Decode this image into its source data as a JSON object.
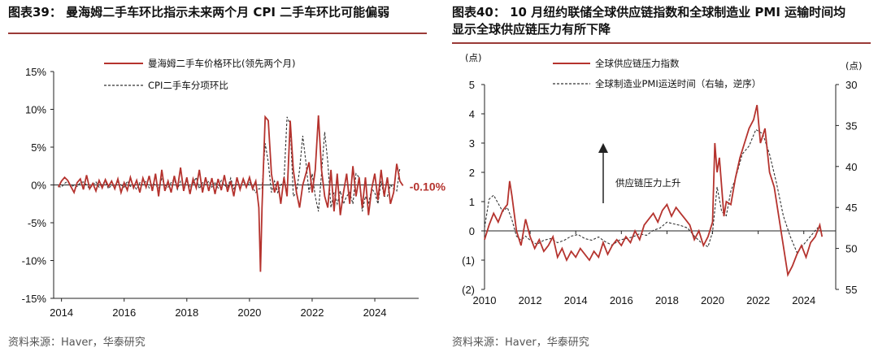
{
  "left": {
    "title": "图表39：  曼海姆二手车环比指示未来两个月 CPI 二手车环比可能偏弱",
    "source": "资料来源：Haver，华泰研究"
  },
  "right": {
    "title_line1": "图表40：  10 月纽约联储全球供应链指数和全球制造业 PMI 运输时间均",
    "title_line2": "显示全球供应链压力有所下降",
    "source": "资料来源：Haver，华泰研究"
  },
  "colors": {
    "red": "#b5332e",
    "black": "#333333",
    "rule": "#9a3a37"
  },
  "chart_data": [
    {
      "type": "line",
      "title": "曼海姆二手车环比指示未来两个月 CPI 二手车环比可能偏弱",
      "x_range": [
        2013.75,
        2025.4
      ],
      "ylim": [
        -15,
        15
      ],
      "y_ticks": [
        15,
        10,
        5,
        0,
        -5,
        -10,
        -15
      ],
      "y_tick_labels": [
        "15%",
        "10%",
        "5%",
        "0%",
        "-5%",
        "-10%",
        "-15%"
      ],
      "x_ticks": [
        2014,
        2016,
        2018,
        2020,
        2022,
        2024
      ],
      "x_tick_labels": [
        "2014",
        "2016",
        "2018",
        "2020",
        "2022",
        "2024"
      ],
      "legend_position": "top-center",
      "annotation": "-0.10%",
      "series": [
        {
          "name": "曼海姆二手车价格环比(领先两个月)",
          "color": "#b5332e",
          "style": "solid",
          "x": [
            2013.9,
            2014.0,
            2014.1,
            2014.2,
            2014.3,
            2014.4,
            2014.5,
            2014.6,
            2014.7,
            2014.8,
            2014.9,
            2015.0,
            2015.1,
            2015.2,
            2015.3,
            2015.4,
            2015.5,
            2015.6,
            2015.7,
            2015.8,
            2015.9,
            2016.0,
            2016.1,
            2016.2,
            2016.3,
            2016.4,
            2016.5,
            2016.6,
            2016.7,
            2016.8,
            2016.9,
            2017.0,
            2017.1,
            2017.2,
            2017.3,
            2017.4,
            2017.5,
            2017.6,
            2017.7,
            2017.8,
            2017.9,
            2018.0,
            2018.1,
            2018.2,
            2018.3,
            2018.4,
            2018.5,
            2018.6,
            2018.7,
            2018.8,
            2018.9,
            2019.0,
            2019.1,
            2019.2,
            2019.3,
            2019.4,
            2019.5,
            2019.6,
            2019.7,
            2019.8,
            2019.9,
            2020.0,
            2020.1,
            2020.2,
            2020.3,
            2020.35,
            2020.4,
            2020.5,
            2020.6,
            2020.7,
            2020.8,
            2020.9,
            2021.0,
            2021.1,
            2021.2,
            2021.3,
            2021.4,
            2021.5,
            2021.6,
            2021.7,
            2021.8,
            2021.9,
            2022.0,
            2022.1,
            2022.2,
            2022.3,
            2022.4,
            2022.5,
            2022.6,
            2022.7,
            2022.8,
            2022.9,
            2023.0,
            2023.1,
            2023.2,
            2023.3,
            2023.4,
            2023.5,
            2023.6,
            2023.7,
            2023.8,
            2023.9,
            2024.0,
            2024.1,
            2024.2,
            2024.3,
            2024.4,
            2024.5,
            2024.6,
            2024.7,
            2024.8,
            2024.9
          ],
          "y": [
            -0.3,
            0.5,
            1.0,
            0.6,
            -0.2,
            -1.0,
            0.3,
            0.8,
            -0.6,
            1.3,
            -0.5,
            0.2,
            -0.8,
            0.6,
            -0.4,
            0.7,
            -0.2,
            0.5,
            -0.5,
            0.8,
            -1.0,
            0.3,
            -0.7,
            1.0,
            -0.4,
            0.6,
            -1.0,
            0.9,
            -0.3,
            1.2,
            -0.8,
            1.5,
            -1.5,
            2.0,
            -0.8,
            0.5,
            -1.0,
            1.2,
            -0.5,
            2.3,
            -0.8,
            1.0,
            -1.2,
            0.8,
            -0.4,
            2.0,
            -1.0,
            1.0,
            -0.8,
            0.9,
            -1.2,
            0.8,
            -0.7,
            1.3,
            -0.9,
            0.5,
            -1.5,
            1.0,
            -0.6,
            0.8,
            -0.3,
            1.0,
            -0.5,
            0.5,
            -3.0,
            -11.5,
            -3.0,
            9.0,
            8.5,
            1.5,
            -1.0,
            0.5,
            -2.5,
            1.0,
            -1.5,
            8.5,
            2.0,
            -1.0,
            -3.0,
            0.0,
            1.5,
            3.0,
            -1.0,
            2.0,
            9.2,
            2.0,
            -1.5,
            -3.0,
            2.0,
            -3.5,
            1.5,
            -4.0,
            -1.0,
            1.5,
            -2.5,
            2.5,
            -1.5,
            1.0,
            -3.0,
            1.0,
            -4.0,
            -0.5,
            1.5,
            -2.0,
            2.0,
            -1.5,
            1.0,
            -2.5,
            -1.0,
            2.8,
            0.5,
            -0.1
          ]
        },
        {
          "name": "CPI二手车分项环比",
          "color": "#333333",
          "style": "dashed",
          "x": [
            2013.9,
            2014.0,
            2014.1,
            2014.2,
            2014.3,
            2014.4,
            2014.5,
            2014.6,
            2014.7,
            2014.8,
            2014.9,
            2015.0,
            2015.1,
            2015.2,
            2015.3,
            2015.4,
            2015.5,
            2015.6,
            2015.7,
            2015.8,
            2015.9,
            2016.0,
            2016.1,
            2016.2,
            2016.3,
            2016.4,
            2016.5,
            2016.6,
            2016.7,
            2016.8,
            2016.9,
            2017.0,
            2017.1,
            2017.2,
            2017.3,
            2017.4,
            2017.5,
            2017.6,
            2017.7,
            2017.8,
            2017.9,
            2018.0,
            2018.1,
            2018.2,
            2018.3,
            2018.4,
            2018.5,
            2018.6,
            2018.7,
            2018.8,
            2018.9,
            2019.0,
            2019.1,
            2019.2,
            2019.3,
            2019.4,
            2019.5,
            2019.6,
            2019.7,
            2019.8,
            2019.9,
            2020.0,
            2020.1,
            2020.2,
            2020.3,
            2020.4,
            2020.5,
            2020.6,
            2020.7,
            2020.8,
            2020.9,
            2021.0,
            2021.1,
            2021.2,
            2021.3,
            2021.4,
            2021.5,
            2021.6,
            2021.7,
            2021.8,
            2021.9,
            2022.0,
            2022.1,
            2022.2,
            2022.3,
            2022.4,
            2022.5,
            2022.6,
            2022.7,
            2022.8,
            2022.9,
            2023.0,
            2023.1,
            2023.2,
            2023.3,
            2023.4,
            2023.5,
            2023.6,
            2023.7,
            2023.8,
            2023.9,
            2024.0,
            2024.1,
            2024.2,
            2024.3,
            2024.4,
            2024.5,
            2024.6,
            2024.7,
            2024.8
          ],
          "y": [
            -0.2,
            -0.3,
            0.2,
            0.5,
            -0.3,
            0.0,
            -0.2,
            0.3,
            0.4,
            0.0,
            -0.5,
            0.0,
            0.4,
            -0.3,
            0.1,
            0.5,
            -0.5,
            0.0,
            -0.2,
            0.4,
            0.0,
            -0.3,
            0.5,
            -0.2,
            0.0,
            -0.6,
            0.3,
            0.0,
            0.5,
            -0.4,
            0.2,
            0.0,
            -0.5,
            0.8,
            0.0,
            -0.3,
            0.3,
            0.8,
            -0.6,
            0.5,
            0.0,
            0.5,
            -0.4,
            0.2,
            1.0,
            -0.5,
            0.3,
            0.0,
            0.5,
            -0.3,
            0.4,
            -0.4,
            0.6,
            0.0,
            -0.4,
            0.9,
            -0.5,
            0.2,
            0.0,
            0.5,
            -0.3,
            0.4,
            -0.4,
            -1.0,
            -0.5,
            -0.5,
            5.5,
            3.0,
            -1.0,
            0.5,
            -1.0,
            0.0,
            0.5,
            9.0,
            8.0,
            -1.5,
            -1.0,
            2.0,
            6.5,
            3.0,
            -1.0,
            1.5,
            -1.5,
            -3.5,
            1.5,
            7.0,
            3.0,
            -3.0,
            -1.0,
            -2.5,
            -0.8,
            -2.5,
            -1.5,
            -1.0,
            -2.5,
            1.5,
            1.0,
            -3.5,
            -1.5,
            -2.5,
            -0.5,
            -1.0,
            -2.5,
            0.5,
            -1.5,
            -1.5,
            0.0,
            -0.5,
            -0.8,
            2.3
          ]
        }
      ]
    },
    {
      "type": "line",
      "title": "10 月纽约联储全球供应链指数和全球制造业 PMI 运输时间均显示全球供应链压力有所下降",
      "x_range": [
        2010,
        2025.4
      ],
      "ylim": [
        -2,
        5
      ],
      "y_ticks": [
        5,
        4,
        3,
        2,
        1,
        0,
        -1,
        -2
      ],
      "y_tick_labels": [
        "5",
        "4",
        "3",
        "2",
        "1",
        "0",
        "(1)",
        "(2)"
      ],
      "y_unit": "(点)",
      "y2lim": [
        30,
        55
      ],
      "y2_reversed": true,
      "y2_ticks": [
        30,
        35,
        40,
        45,
        50,
        55
      ],
      "y2_tick_labels": [
        "30",
        "35",
        "40",
        "45",
        "50",
        "55"
      ],
      "y2_unit": "(点)",
      "x_ticks": [
        2010,
        2012,
        2014,
        2016,
        2018,
        2020,
        2022,
        2024
      ],
      "x_tick_labels": [
        "2010",
        "2012",
        "2014",
        "2016",
        "2018",
        "2020",
        "2022",
        "2024"
      ],
      "legend_position": "top-left",
      "annotation": "供应链压力上升",
      "series": [
        {
          "name": "全球供应链压力指数",
          "color": "#b5332e",
          "style": "solid",
          "axis": "left",
          "x": [
            2010.0,
            2010.2,
            2010.4,
            2010.6,
            2010.8,
            2011.0,
            2011.1,
            2011.2,
            2011.4,
            2011.6,
            2011.8,
            2012.0,
            2012.2,
            2012.4,
            2012.6,
            2012.8,
            2013.0,
            2013.2,
            2013.4,
            2013.6,
            2013.8,
            2014.0,
            2014.2,
            2014.4,
            2014.6,
            2014.8,
            2015.0,
            2015.2,
            2015.4,
            2015.6,
            2015.8,
            2016.0,
            2016.2,
            2016.4,
            2016.6,
            2016.8,
            2017.0,
            2017.2,
            2017.4,
            2017.6,
            2017.8,
            2018.0,
            2018.2,
            2018.4,
            2018.6,
            2018.8,
            2019.0,
            2019.2,
            2019.4,
            2019.6,
            2019.8,
            2020.0,
            2020.1,
            2020.2,
            2020.3,
            2020.4,
            2020.5,
            2020.6,
            2020.8,
            2021.0,
            2021.2,
            2021.4,
            2021.6,
            2021.8,
            2021.95,
            2022.1,
            2022.3,
            2022.5,
            2022.7,
            2022.9,
            2023.1,
            2023.3,
            2023.5,
            2023.7,
            2023.9,
            2024.1,
            2024.3,
            2024.5,
            2024.7,
            2024.8
          ],
          "y": [
            -0.3,
            0.2,
            0.6,
            0.3,
            0.7,
            0.9,
            1.7,
            1.2,
            0.0,
            -0.5,
            0.4,
            -0.2,
            -0.6,
            -0.3,
            -0.7,
            -0.5,
            -0.2,
            -0.9,
            -0.6,
            -1.0,
            -0.7,
            -0.9,
            -0.6,
            -0.8,
            -1.0,
            -0.7,
            -0.9,
            -0.4,
            -0.8,
            -0.5,
            -0.3,
            -0.5,
            -0.2,
            -0.4,
            0.0,
            -0.3,
            0.2,
            0.4,
            0.6,
            0.3,
            0.7,
            0.9,
            0.5,
            0.8,
            0.6,
            0.4,
            0.2,
            -0.3,
            0.0,
            -0.5,
            -0.2,
            0.3,
            3.0,
            2.0,
            2.5,
            1.5,
            0.5,
            1.0,
            0.9,
            1.8,
            2.5,
            3.0,
            3.5,
            3.8,
            4.3,
            3.0,
            3.5,
            2.0,
            1.5,
            0.5,
            -0.5,
            -1.5,
            -1.2,
            -0.8,
            -0.5,
            -0.9,
            -0.4,
            -0.2,
            0.2,
            -0.2
          ]
        },
        {
          "name": "全球制造业PMI运送时间（右轴，逆序）",
          "color": "#333333",
          "style": "dashed",
          "axis": "right",
          "x": [
            2010.0,
            2010.2,
            2010.4,
            2010.6,
            2010.8,
            2011.0,
            2011.2,
            2011.4,
            2011.6,
            2011.8,
            2012.0,
            2012.3,
            2012.6,
            2012.9,
            2013.2,
            2013.5,
            2013.8,
            2014.1,
            2014.4,
            2014.7,
            2015.0,
            2015.3,
            2015.6,
            2015.9,
            2016.2,
            2016.5,
            2016.8,
            2017.1,
            2017.4,
            2017.7,
            2018.0,
            2018.3,
            2018.6,
            2018.9,
            2019.2,
            2019.5,
            2019.8,
            2020.0,
            2020.2,
            2020.4,
            2020.6,
            2020.8,
            2021.0,
            2021.3,
            2021.6,
            2021.9,
            2022.2,
            2022.5,
            2022.8,
            2023.1,
            2023.4,
            2023.7,
            2024.0,
            2024.3,
            2024.6,
            2024.8
          ],
          "y": [
            47.5,
            44.0,
            43.5,
            44.5,
            45.5,
            45.0,
            46.5,
            48.5,
            49.0,
            48.5,
            49.0,
            49.5,
            49.0,
            48.8,
            49.3,
            49.0,
            48.5,
            48.3,
            48.8,
            49.0,
            48.6,
            49.2,
            49.6,
            49.0,
            48.8,
            48.6,
            48.2,
            48.4,
            47.8,
            47.5,
            46.8,
            47.0,
            47.2,
            47.5,
            48.5,
            49.3,
            49.8,
            48.0,
            42.5,
            45.5,
            46.0,
            43.0,
            41.5,
            38.5,
            37.5,
            35.5,
            36.0,
            38.5,
            42.0,
            46.0,
            48.5,
            50.5,
            49.5,
            48.5,
            47.5,
            48.0
          ]
        }
      ]
    }
  ]
}
